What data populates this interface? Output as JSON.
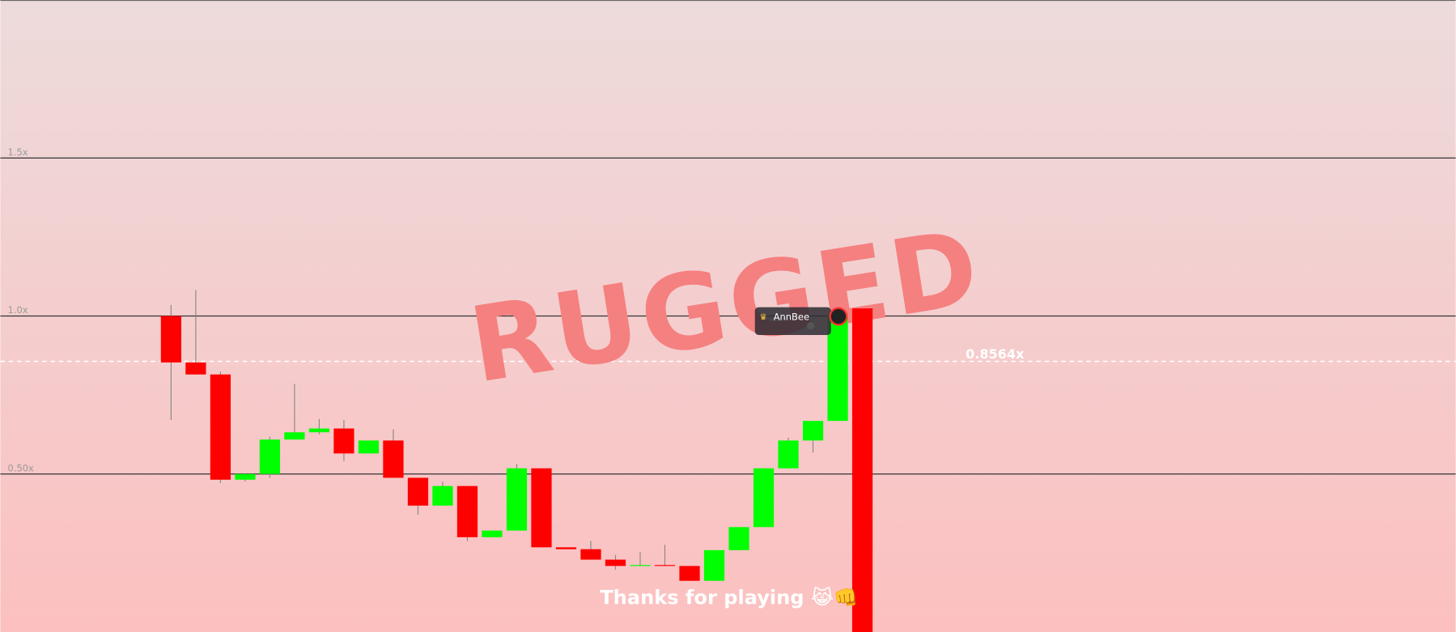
{
  "chart_data": {
    "type": "candlestick",
    "open": [
      1.0,
      0.853,
      0.815,
      0.482,
      0.5,
      0.609,
      0.632,
      0.644,
      0.565,
      0.606,
      0.488,
      0.4,
      0.462,
      0.3,
      0.321,
      0.518,
      0.268,
      0.262,
      0.229,
      0.209,
      0.212,
      0.209,
      0.162,
      0.259,
      0.332,
      0.518,
      0.606,
      0.668,
      1.024
    ],
    "high": [
      1.035,
      1.082,
      0.824,
      0.5,
      0.618,
      0.785,
      0.674,
      0.671,
      0.606,
      0.641,
      0.488,
      0.476,
      0.462,
      0.321,
      0.532,
      0.518,
      0.268,
      0.288,
      0.244,
      0.253,
      0.276,
      0.209,
      0.259,
      0.332,
      0.518,
      0.615,
      0.668,
      1.0,
      1.024
    ],
    "low": [
      0.671,
      0.815,
      0.471,
      0.476,
      0.488,
      0.609,
      0.626,
      0.541,
      0.565,
      0.488,
      0.371,
      0.4,
      0.288,
      0.3,
      0.321,
      0.268,
      0.262,
      0.229,
      0.197,
      0.209,
      0.209,
      0.162,
      0.162,
      0.259,
      0.332,
      0.518,
      0.568,
      0.668,
      0
    ],
    "close": [
      0.853,
      0.815,
      0.482,
      0.5,
      0.609,
      0.632,
      0.644,
      0.565,
      0.606,
      0.488,
      0.4,
      0.462,
      0.3,
      0.321,
      0.518,
      0.268,
      0.262,
      0.229,
      0.209,
      0.212,
      0.209,
      0.162,
      0.259,
      0.332,
      0.518,
      0.606,
      0.668,
      1.0,
      0
    ],
    "up_color": "#00ff00",
    "down_color": "#ff0000",
    "ylim": [
      0,
      2
    ],
    "yticks": [
      {
        "value": 0.5,
        "label": "0.50x"
      },
      {
        "value": 1.0,
        "label": "1.0x"
      },
      {
        "value": 1.5,
        "label": "1.5x"
      }
    ],
    "grid": true,
    "current": {
      "value": 0.8564,
      "label": "0.8564x"
    },
    "overlay_text": "RUGGED",
    "message": "Thanks for playing 😹👊",
    "player": {
      "name": "AnnBee"
    }
  }
}
